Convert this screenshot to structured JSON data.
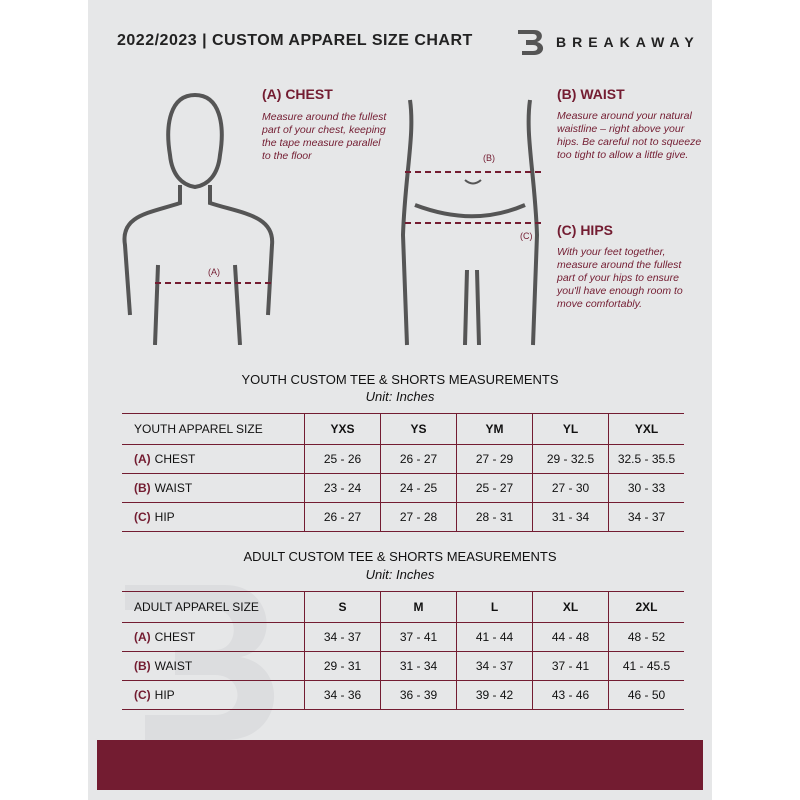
{
  "header": {
    "title": "2022/2023  |  CUSTOM APPAREL SIZE CHART",
    "brand": "BREAKAWAY",
    "logo_letter": "B"
  },
  "chest": {
    "heading": "(A) CHEST",
    "description": "Measure around the fullest part of your chest, keeping the tape measure parallel to the floor",
    "marker": "(A)"
  },
  "waist": {
    "heading": "(B) WAIST",
    "description": "Measure around your natural waistline – right above your hips. Be careful not to squeeze too tight to allow a little give.",
    "marker": "(B)"
  },
  "hips": {
    "heading": "(C) HIPS",
    "description": "With your feet together, measure around the fullest part of your hips to ensure you'll have enough room to move comfortably.",
    "marker": "(C)"
  },
  "youth": {
    "title": "YOUTH CUSTOM TEE & SHORTS MEASUREMENTS",
    "unit": "Unit: Inches",
    "size_label": "YOUTH APPAREL SIZE",
    "sizes": [
      "YXS",
      "YS",
      "YM",
      "YL",
      "YXL"
    ],
    "rows": [
      {
        "letter": "(A)",
        "name": "CHEST",
        "values": [
          "25 - 26",
          "26 - 27",
          "27 - 29",
          "29 - 32.5",
          "32.5 - 35.5"
        ]
      },
      {
        "letter": "(B)",
        "name": "WAIST",
        "values": [
          "23 - 24",
          "24 - 25",
          "25 - 27",
          "27 - 30",
          "30 - 33"
        ]
      },
      {
        "letter": "(C)",
        "name": "HIP",
        "values": [
          "26 - 27",
          "27 - 28",
          "28 - 31",
          "31 - 34",
          "34 - 37"
        ]
      }
    ]
  },
  "adult": {
    "title": "ADULT CUSTOM TEE & SHORTS MEASUREMENTS",
    "unit": "Unit: Inches",
    "size_label": "ADULT APPAREL SIZE",
    "sizes": [
      "S",
      "M",
      "L",
      "XL",
      "2XL"
    ],
    "rows": [
      {
        "letter": "(A)",
        "name": "CHEST",
        "values": [
          "34 - 37",
          "37 - 41",
          "41 - 44",
          "44 - 48",
          "48 - 52"
        ]
      },
      {
        "letter": "(B)",
        "name": "WAIST",
        "values": [
          "29 - 31",
          "31 - 34",
          "34 - 37",
          "37 - 41",
          "41 - 45.5"
        ]
      },
      {
        "letter": "(C)",
        "name": "HIP",
        "values": [
          "34 - 36",
          "36 - 39",
          "39 - 42",
          "43 - 46",
          "46 - 50"
        ]
      }
    ]
  },
  "colors": {
    "accent": "#731c31",
    "background": "#e6e7e8"
  }
}
